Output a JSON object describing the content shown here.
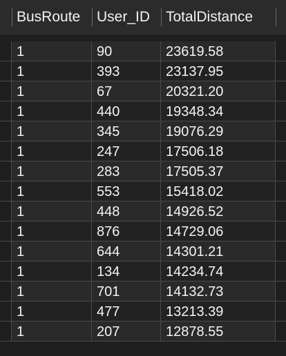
{
  "table": {
    "columns": [
      "BusRoute",
      "User_ID",
      "TotalDistance"
    ],
    "rows": [
      [
        "1",
        "90",
        "23619.58"
      ],
      [
        "1",
        "393",
        "23137.95"
      ],
      [
        "1",
        "67",
        "20321.20"
      ],
      [
        "1",
        "440",
        "19348.34"
      ],
      [
        "1",
        "345",
        "19076.29"
      ],
      [
        "1",
        "247",
        "17506.18"
      ],
      [
        "1",
        "283",
        "17505.37"
      ],
      [
        "1",
        "553",
        "15418.02"
      ],
      [
        "1",
        "448",
        "14926.52"
      ],
      [
        "1",
        "876",
        "14729.06"
      ],
      [
        "1",
        "644",
        "14301.21"
      ],
      [
        "1",
        "134",
        "14234.74"
      ],
      [
        "1",
        "701",
        "14132.73"
      ],
      [
        "1",
        "477",
        "13213.39"
      ],
      [
        "1",
        "207",
        "12878.55"
      ]
    ]
  },
  "colors": {
    "background": "#1e1e1e",
    "header": "#2b2b2b",
    "row_odd": "#2a2a2a",
    "row_even": "#222222",
    "gridline": "#4a4a4a",
    "text": "#f4f4f4"
  }
}
